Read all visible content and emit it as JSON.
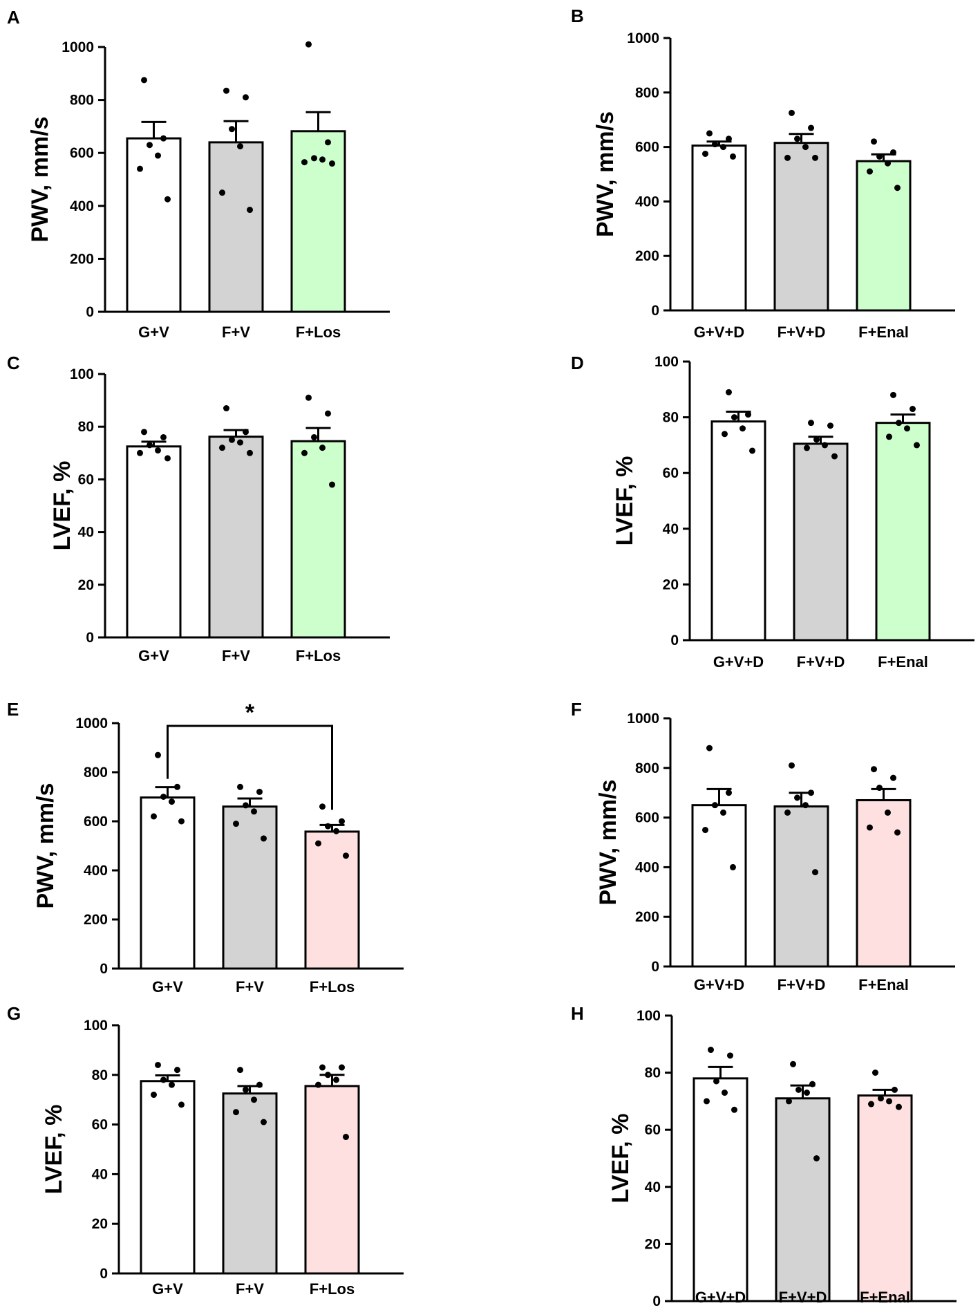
{
  "figure_colors": {
    "white": "#ffffff",
    "gray": "#d3d3d3",
    "green": "#ccffcc",
    "pink": "#ffe0e0"
  },
  "chart_data": [
    {
      "panel": "A",
      "type": "bar",
      "title": "",
      "xlabel": "",
      "ylabel": "PWV, mm/s",
      "ylim": [
        0,
        1000
      ],
      "yticks": [
        0,
        200,
        400,
        600,
        800,
        1000
      ],
      "categories": [
        "G+V",
        "F+V",
        "F+Los"
      ],
      "values": [
        655,
        640,
        682
      ],
      "sem": [
        62,
        80,
        72
      ],
      "colors": [
        "white",
        "gray",
        "green"
      ],
      "points": [
        [
          875,
          655,
          630,
          590,
          540,
          425
        ],
        [
          835,
          810,
          690,
          625,
          450,
          385
        ],
        [
          1010,
          640,
          580,
          575,
          565,
          560
        ]
      ],
      "significance": []
    },
    {
      "panel": "B",
      "type": "bar",
      "title": "",
      "xlabel": "",
      "ylabel": "PWV, mm/s",
      "ylim": [
        0,
        1000
      ],
      "yticks": [
        0,
        200,
        400,
        600,
        800,
        1000
      ],
      "categories": [
        "G+V+D",
        "F+V+D",
        "F+Enal"
      ],
      "values": [
        605,
        615,
        548
      ],
      "sem": [
        15,
        33,
        25
      ],
      "colors": [
        "white",
        "gray",
        "green"
      ],
      "points": [
        [
          650,
          630,
          610,
          600,
          575,
          565
        ],
        [
          725,
          670,
          630,
          600,
          560,
          560
        ],
        [
          620,
          580,
          565,
          540,
          510,
          450
        ]
      ],
      "significance": []
    },
    {
      "panel": "C",
      "type": "bar",
      "title": "",
      "xlabel": "",
      "ylabel": "LVEF, %",
      "ylim": [
        0,
        100
      ],
      "yticks": [
        0,
        20,
        40,
        60,
        80,
        100
      ],
      "categories": [
        "G+V",
        "F+V",
        "F+Los"
      ],
      "values": [
        72.5,
        76.2,
        74.5
      ],
      "sem": [
        1.8,
        2.5,
        5.0
      ],
      "colors": [
        "white",
        "gray",
        "green"
      ],
      "points": [
        [
          78,
          76,
          73,
          71,
          70,
          68
        ],
        [
          87,
          78,
          75,
          74,
          72,
          70
        ],
        [
          91,
          85,
          76,
          72,
          70,
          58
        ]
      ],
      "significance": []
    },
    {
      "panel": "D",
      "type": "bar",
      "title": "",
      "xlabel": "",
      "ylabel": "LVEF, %",
      "ylim": [
        0,
        100
      ],
      "yticks": [
        0,
        20,
        40,
        60,
        80,
        100
      ],
      "categories": [
        "G+V+D",
        "F+V+D",
        "F+Enal"
      ],
      "values": [
        78.5,
        70.5,
        78.0
      ],
      "sem": [
        3.5,
        2.5,
        3.0
      ],
      "colors": [
        "white",
        "gray",
        "green"
      ],
      "points": [
        [
          89,
          81,
          80,
          76,
          74,
          68
        ],
        [
          78,
          77,
          72,
          70,
          69,
          66
        ],
        [
          88,
          83,
          78,
          76,
          73,
          70
        ]
      ],
      "significance": []
    },
    {
      "panel": "E",
      "type": "bar",
      "title": "",
      "xlabel": "",
      "ylabel": "PWV, mm/s",
      "ylim": [
        0,
        1000
      ],
      "yticks": [
        0,
        200,
        400,
        600,
        800,
        1000
      ],
      "categories": [
        "G+V",
        "F+V",
        "F+Los"
      ],
      "values": [
        697,
        660,
        558
      ],
      "sem": [
        42,
        33,
        27
      ],
      "colors": [
        "white",
        "gray",
        "pink"
      ],
      "points": [
        [
          870,
          740,
          700,
          680,
          620,
          600
        ],
        [
          740,
          720,
          665,
          640,
          590,
          530
        ],
        [
          660,
          600,
          580,
          560,
          510,
          460
        ]
      ],
      "significance": [
        {
          "from": 0,
          "to": 2,
          "label": "*"
        }
      ]
    },
    {
      "panel": "F",
      "type": "bar",
      "title": "",
      "xlabel": "",
      "ylabel": "PWV, mm/s",
      "ylim": [
        0,
        1000
      ],
      "yticks": [
        0,
        200,
        400,
        600,
        800,
        1000
      ],
      "categories": [
        "G+V+D",
        "F+V+D",
        "F+Enal"
      ],
      "values": [
        650,
        645,
        670
      ],
      "sem": [
        65,
        55,
        45
      ],
      "colors": [
        "white",
        "gray",
        "pink"
      ],
      "points": [
        [
          880,
          700,
          650,
          620,
          550,
          400
        ],
        [
          810,
          700,
          680,
          650,
          620,
          380
        ],
        [
          795,
          760,
          720,
          620,
          560,
          540
        ]
      ],
      "significance": []
    },
    {
      "panel": "G",
      "type": "bar",
      "title": "",
      "xlabel": "",
      "ylabel": "LVEF, %",
      "ylim": [
        0,
        100
      ],
      "yticks": [
        0,
        20,
        40,
        60,
        80,
        100
      ],
      "categories": [
        "G+V",
        "F+V",
        "F+Los"
      ],
      "values": [
        77.5,
        72.5,
        75.5
      ],
      "sem": [
        2.3,
        3.0,
        4.5
      ],
      "colors": [
        "white",
        "gray",
        "pink"
      ],
      "points": [
        [
          84,
          82,
          78,
          76,
          72,
          68
        ],
        [
          82,
          76,
          74,
          70,
          65,
          61
        ],
        [
          83,
          83,
          80,
          78,
          76,
          55
        ]
      ],
      "significance": []
    },
    {
      "panel": "H",
      "type": "bar",
      "title": "",
      "xlabel": "",
      "ylabel": "LVEF, %",
      "ylim": [
        0,
        100
      ],
      "yticks": [
        0,
        20,
        40,
        60,
        80,
        100
      ],
      "categories": [
        "G+V+D",
        "F+V+D",
        "F+Enal"
      ],
      "values": [
        78.0,
        71.0,
        72.0
      ],
      "sem": [
        4.0,
        4.5,
        2.0
      ],
      "colors": [
        "white",
        "gray",
        "pink"
      ],
      "points": [
        [
          88,
          86,
          77,
          73,
          70,
          67
        ],
        [
          83,
          76,
          74,
          73,
          70,
          50
        ],
        [
          80,
          74,
          71,
          70,
          69,
          68
        ]
      ],
      "significance": []
    }
  ]
}
